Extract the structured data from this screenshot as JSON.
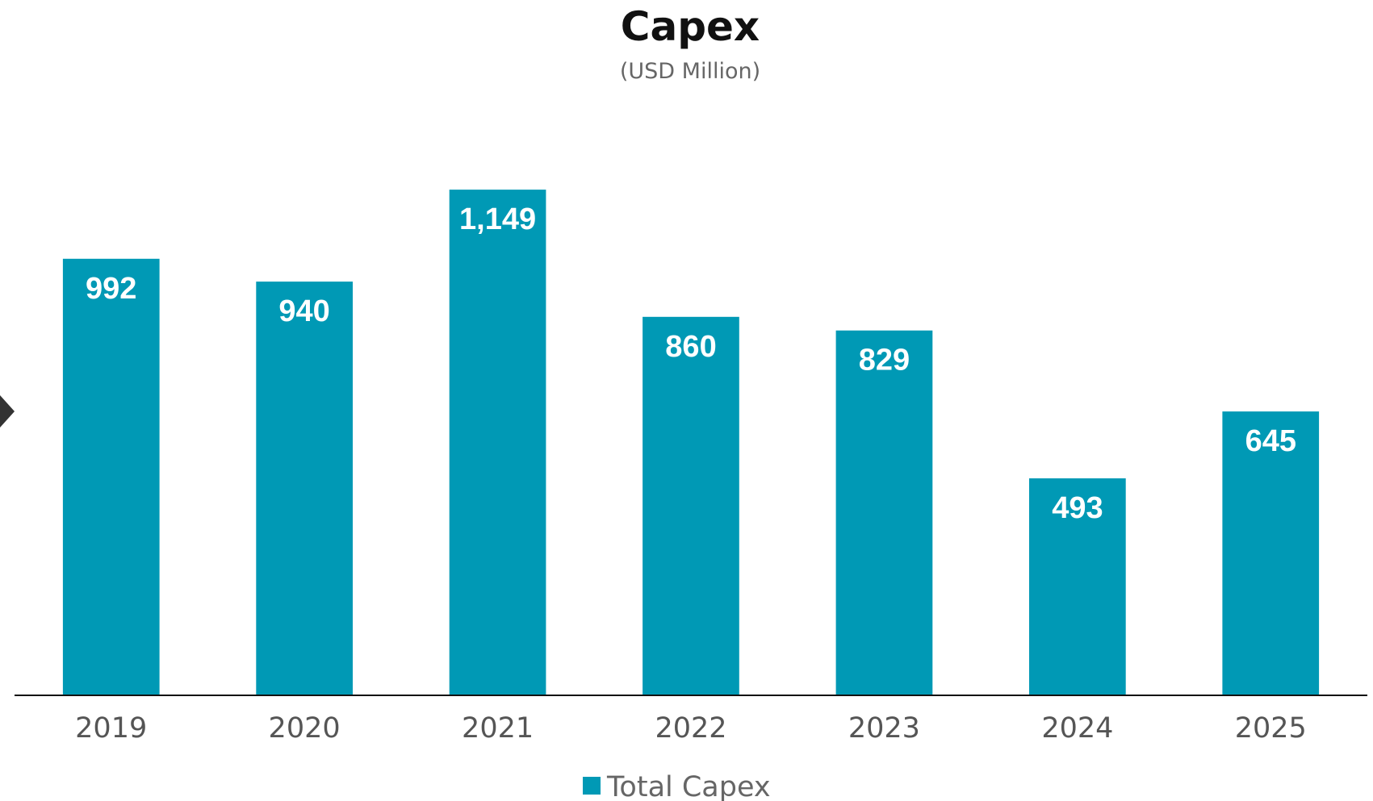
{
  "chart_data": {
    "type": "bar",
    "title": "Capex",
    "subtitle": "(USD Million)",
    "categories": [
      "2019",
      "2020",
      "2021",
      "2022",
      "2023",
      "2024",
      "2025"
    ],
    "series": [
      {
        "name": "Total Capex",
        "color": "#0099b5",
        "values": [
          992,
          940,
          1149,
          860,
          829,
          493,
          645
        ],
        "value_labels": [
          "992",
          "940",
          "1,149",
          "860",
          "829",
          "493",
          "645"
        ]
      }
    ],
    "ylim": [
      0,
      1250
    ],
    "grid": false,
    "legend": "bottom-center",
    "axis_color": "#111111",
    "text_color": "#555555"
  }
}
